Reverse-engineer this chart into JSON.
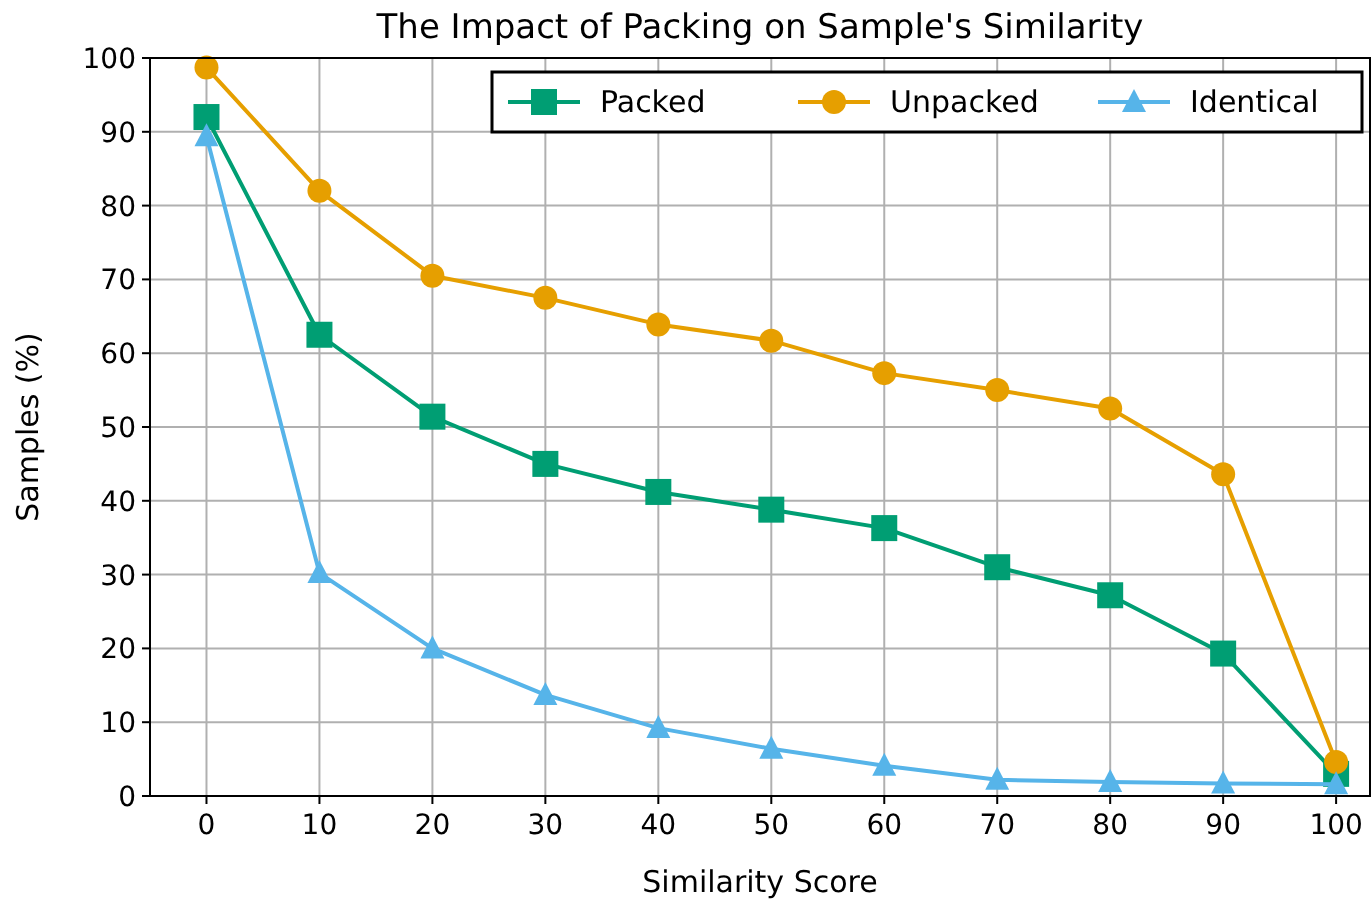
{
  "chart_data": {
    "type": "line",
    "title": "The Impact of Packing on Sample's Similarity",
    "xlabel": "Similarity Score",
    "ylabel": "Samples (%)",
    "x": [
      0,
      10,
      20,
      30,
      40,
      50,
      60,
      70,
      80,
      90,
      100
    ],
    "series": [
      {
        "name": "Packed",
        "color": "#009e73",
        "marker": "square",
        "values": [
          92,
          62.5,
          51.4,
          45,
          41.2,
          38.8,
          36.3,
          31,
          27.2,
          19.3,
          3
        ]
      },
      {
        "name": "Unpacked",
        "color": "#e69f00",
        "marker": "circle",
        "values": [
          98.7,
          82,
          70.5,
          67.5,
          63.9,
          61.7,
          57.3,
          55,
          52.5,
          43.6,
          4.6
        ]
      },
      {
        "name": "Identical",
        "color": "#56b4e9",
        "marker": "triangle",
        "values": [
          89.4,
          30.2,
          20,
          13.7,
          9.2,
          6.4,
          4.1,
          2.2,
          1.9,
          1.7,
          1.6
        ]
      }
    ],
    "xlim": [
      -5,
      103
    ],
    "ylim": [
      0,
      100
    ],
    "xticks": [
      0,
      10,
      20,
      30,
      40,
      50,
      60,
      70,
      80,
      90,
      100
    ],
    "yticks": [
      0,
      10,
      20,
      30,
      40,
      50,
      60,
      70,
      80,
      90,
      100
    ],
    "grid": true,
    "legend": "top right",
    "line_style": "solid"
  }
}
